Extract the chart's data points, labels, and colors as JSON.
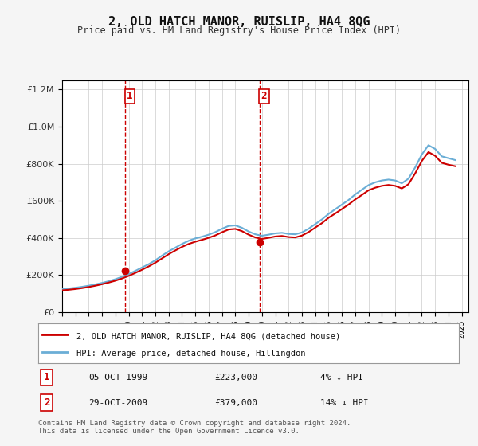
{
  "title": "2, OLD HATCH MANOR, RUISLIP, HA4 8QG",
  "subtitle": "Price paid vs. HM Land Registry's House Price Index (HPI)",
  "legend_line1": "2, OLD HATCH MANOR, RUISLIP, HA4 8QG (detached house)",
  "legend_line2": "HPI: Average price, detached house, Hillingdon",
  "footer": "Contains HM Land Registry data © Crown copyright and database right 2024.\nThis data is licensed under the Open Government Licence v3.0.",
  "purchase1_date": "05-OCT-1999",
  "purchase1_price": 223000,
  "purchase1_note": "4% ↓ HPI",
  "purchase2_date": "29-OCT-2009",
  "purchase2_price": 379000,
  "purchase2_note": "14% ↓ HPI",
  "hpi_color": "#6baed6",
  "price_color": "#cc0000",
  "vline_color": "#cc0000",
  "bg_color": "#f5f5f5",
  "plot_bg": "#ffffff",
  "ylim": [
    0,
    1250000
  ],
  "yticks": [
    0,
    200000,
    400000,
    600000,
    800000,
    1000000,
    1200000
  ],
  "xlim_start": 1995.0,
  "xlim_end": 2025.5,
  "purchase1_x": 1999.75,
  "purchase2_x": 2009.83,
  "hpi_x": [
    1995,
    1995.5,
    1996,
    1996.5,
    1997,
    1997.5,
    1998,
    1998.5,
    1999,
    1999.5,
    2000,
    2000.5,
    2001,
    2001.5,
    2002,
    2002.5,
    2003,
    2003.5,
    2004,
    2004.5,
    2005,
    2005.5,
    2006,
    2006.5,
    2007,
    2007.5,
    2008,
    2008.5,
    2009,
    2009.5,
    2010,
    2010.5,
    2011,
    2011.5,
    2012,
    2012.5,
    2013,
    2013.5,
    2014,
    2014.5,
    2015,
    2015.5,
    2016,
    2016.5,
    2017,
    2017.5,
    2018,
    2018.5,
    2019,
    2019.5,
    2020,
    2020.5,
    2021,
    2021.5,
    2022,
    2022.5,
    2023,
    2023.5,
    2024,
    2024.5
  ],
  "hpi_y": [
    125000,
    128000,
    132000,
    137000,
    143000,
    150000,
    158000,
    167000,
    178000,
    191000,
    206000,
    223000,
    241000,
    259000,
    280000,
    305000,
    328000,
    348000,
    368000,
    385000,
    398000,
    407000,
    418000,
    432000,
    450000,
    465000,
    468000,
    455000,
    435000,
    420000,
    412000,
    418000,
    425000,
    428000,
    422000,
    420000,
    430000,
    450000,
    475000,
    500000,
    530000,
    555000,
    580000,
    605000,
    635000,
    660000,
    685000,
    700000,
    710000,
    715000,
    710000,
    695000,
    720000,
    780000,
    850000,
    900000,
    880000,
    840000,
    830000,
    820000
  ],
  "price_y": [
    118000,
    121000,
    125000,
    130000,
    136000,
    143000,
    151000,
    160000,
    170000,
    182000,
    196000,
    212000,
    229000,
    247000,
    267000,
    290000,
    313000,
    333000,
    352000,
    368000,
    380000,
    390000,
    401000,
    414000,
    431000,
    446000,
    449000,
    437000,
    418000,
    403000,
    395000,
    401000,
    408000,
    411000,
    405000,
    403000,
    413000,
    432000,
    456000,
    480000,
    509000,
    532000,
    556000,
    580000,
    608000,
    632000,
    657000,
    671000,
    681000,
    686000,
    681000,
    667000,
    690000,
    748000,
    815000,
    863000,
    843000,
    805000,
    795000,
    787000
  ],
  "xticks": [
    1995,
    1996,
    1997,
    1998,
    1999,
    2000,
    2001,
    2002,
    2003,
    2004,
    2005,
    2006,
    2007,
    2008,
    2009,
    2010,
    2011,
    2012,
    2013,
    2014,
    2015,
    2016,
    2017,
    2018,
    2019,
    2020,
    2021,
    2022,
    2023,
    2024,
    2025
  ]
}
